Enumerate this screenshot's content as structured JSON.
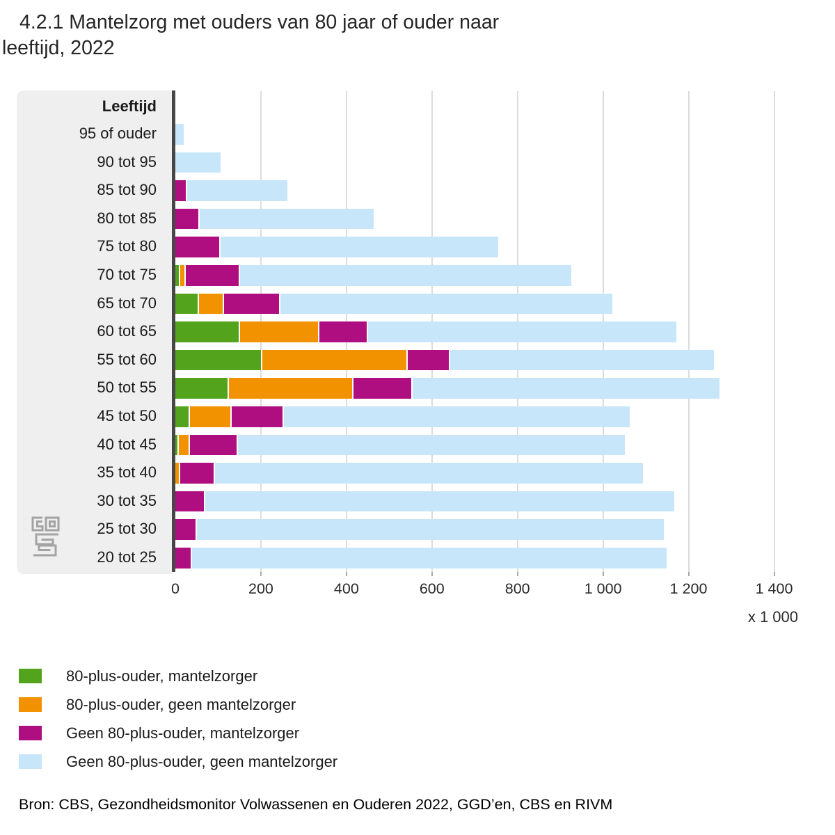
{
  "title": "4.2.1 Mantelzorg met ouders van 80 jaar of ouder naar\nleeftijd, 2022",
  "source": "Bron: CBS, Gezondheidsmonitor Volwassenen en Ouderen 2022, GGD’en, CBS en RIVM",
  "colors": {
    "green": "#53a31d",
    "orange": "#f39200",
    "magenta": "#af0e80",
    "lightblue": "#c7e6fa",
    "panel_gray": "#efefef",
    "axis_dark": "#474747",
    "gridline": "#dcdcdc",
    "logo_gray": "#a3a3a3"
  },
  "chart_data": {
    "type": "bar",
    "orientation": "horizontal",
    "stacked": true,
    "grid": true,
    "legend_position": "bottom",
    "title": "4.2.1 Mantelzorg met ouders van 80 jaar of ouder naar leeftijd, 2022",
    "category_header": "Leeftijd",
    "unit_label": "x 1 000",
    "xlim": [
      0,
      1400
    ],
    "x_ticks": [
      0,
      200,
      400,
      600,
      800,
      1000,
      1200,
      1400
    ],
    "x_tick_labels": [
      "0",
      "200",
      "400",
      "600",
      "800",
      "1 000",
      "1 200",
      "1 400"
    ],
    "categories": [
      "95 of ouder",
      "90 tot 95",
      "85 tot 90",
      "80 tot 85",
      "75 tot 80",
      "70 tot 75",
      "65 tot 70",
      "60 tot 65",
      "55 tot 60",
      "50 tot 55",
      "45 tot 50",
      "40 tot 45",
      "35 tot 40",
      "30 tot 35",
      "25 tot 30",
      "20 tot 25"
    ],
    "series": [
      {
        "name": "80-plus-ouder, mantelzorger",
        "color": "#53a31d",
        "values": [
          0,
          0,
          0,
          0,
          0,
          8,
          52,
          148,
          200,
          122,
          31,
          5,
          0,
          0,
          0,
          0
        ]
      },
      {
        "name": "80-plus-ouder, geen mantelzorger",
        "color": "#f39200",
        "values": [
          0,
          0,
          0,
          0,
          0,
          13,
          58,
          186,
          340,
          292,
          97,
          26,
          8,
          0,
          0,
          0
        ]
      },
      {
        "name": "Geen 80-plus-ouder, mantelzorger",
        "color": "#af0e80",
        "values": [
          0,
          0,
          24,
          54,
          103,
          127,
          133,
          113,
          99,
          137,
          123,
          112,
          82,
          67,
          47,
          35
        ]
      },
      {
        "name": "Geen 80-plus-ouder, geen mantelzorger",
        "color": "#c7e6fa",
        "values": [
          20,
          105,
          238,
          409,
          652,
          777,
          779,
          725,
          620,
          721,
          811,
          908,
          1003,
          1099,
          1095,
          1113
        ]
      }
    ]
  }
}
